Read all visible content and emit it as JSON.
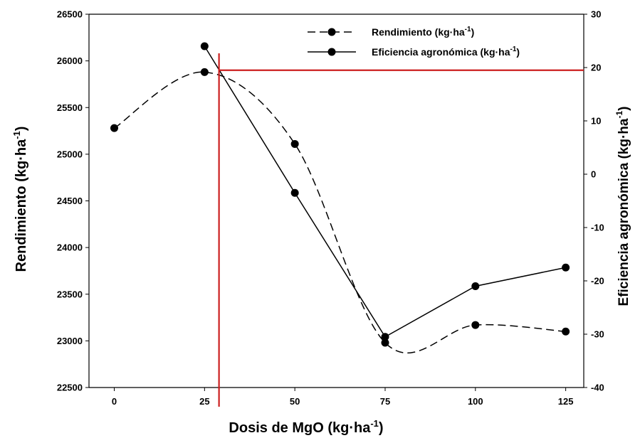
{
  "chart_data": {
    "type": "line",
    "x": [
      0,
      25,
      50,
      75,
      100,
      125
    ],
    "xlim": [
      -7,
      130
    ],
    "xticks": [
      "0",
      "25",
      "50",
      "75",
      "100",
      "125"
    ],
    "xlabel": "Dosis de MgO (kg·ha",
    "xlabel_sup": "-1",
    "xlabel_end": ")",
    "ylabel": "Rendimiento (kg·ha",
    "ylabel_sup": "-1",
    "ylabel_end": ")",
    "ylim": [
      22500,
      26500
    ],
    "yticks": [
      "22500",
      "23000",
      "23500",
      "24000",
      "24500",
      "25000",
      "25500",
      "26000",
      "26500"
    ],
    "y2label": "Eficiencia agronómica (kg·ha",
    "y2label_sup": "-1",
    "y2label_end": ")",
    "y2lim": [
      -40,
      30
    ],
    "y2ticks": [
      "-40",
      "-30",
      "-20",
      "-10",
      "0",
      "10",
      "20",
      "30"
    ],
    "series": [
      {
        "name": "Rendimiento (kg·ha",
        "name_sup": "-1",
        "name_end": ")",
        "axis": "left",
        "style": "dashed",
        "values": [
          25280,
          25880,
          25110,
          22980,
          23170,
          23100
        ]
      },
      {
        "name": "Eficiencia agronómica (kg·ha",
        "name_sup": "-1",
        "name_end": ")",
        "axis": "right",
        "style": "solid",
        "values": [
          null,
          24,
          -3.5,
          -30.5,
          -21,
          -17.5
        ]
      }
    ],
    "reference_lines": {
      "color": "#cc1f1f",
      "vertical_x": 29,
      "horizontal_y2": 19.5
    },
    "legend_position": "top-right",
    "grid": false
  }
}
